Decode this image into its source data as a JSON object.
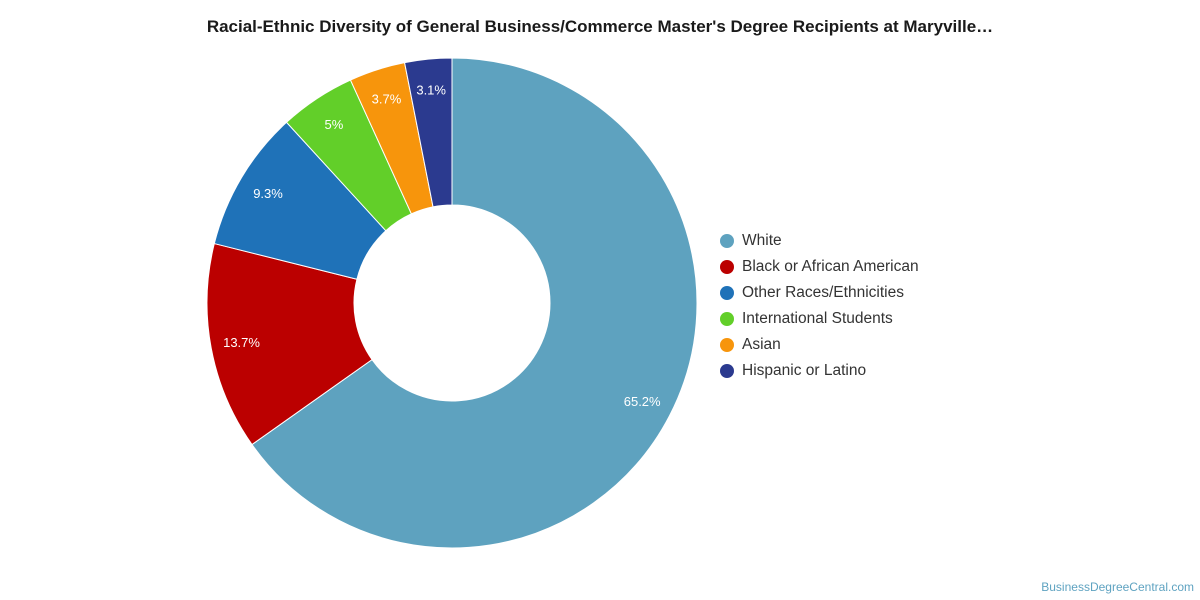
{
  "chart_data": {
    "type": "pie",
    "title": "Racial-Ethnic Diversity of General Business/Commerce Master's Degree Recipients at Maryville…",
    "categories": [
      "White",
      "Black or African American",
      "Other Races/Ethnicities",
      "International Students",
      "Asian",
      "Hispanic or Latino"
    ],
    "values": [
      65.2,
      13.7,
      9.3,
      5,
      3.7,
      3.1
    ],
    "value_labels": [
      "65.2%",
      "13.7%",
      "9.3%",
      "5%",
      "3.7%",
      "3.1%"
    ],
    "colors": [
      "#5ea2bf",
      "#bb0000",
      "#1f72b8",
      "#62cf29",
      "#f7950c",
      "#2b3a8f"
    ],
    "style": "donut",
    "legend_position": "right"
  },
  "credit": "BusinessDegreeCentral.com"
}
